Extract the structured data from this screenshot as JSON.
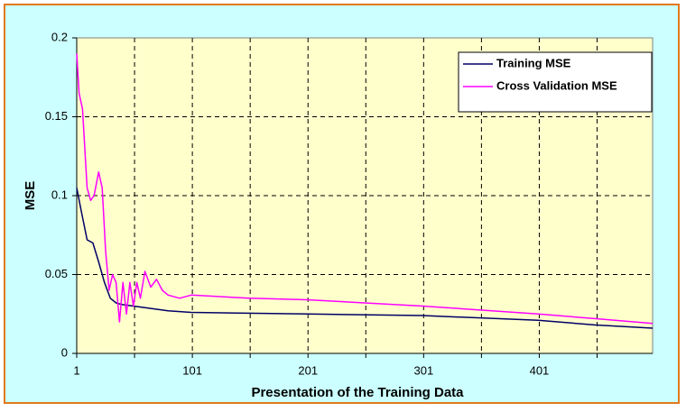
{
  "chart_data": {
    "type": "line",
    "xlabel": "Presentation of the Training Data",
    "ylabel": "MSE",
    "xlim": [
      1,
      499
    ],
    "xticks": [
      1,
      101,
      201,
      301,
      401
    ],
    "xminor_ticks": [
      51,
      151,
      251,
      351,
      451
    ],
    "ylim": [
      0,
      0.2
    ],
    "yticks": [
      0,
      0.05,
      0.1,
      0.15,
      0.2
    ],
    "grid": true,
    "legend": "upper right",
    "series": [
      {
        "name": "Training MSE",
        "color": "#000066",
        "x": [
          1,
          5,
          10,
          15,
          20,
          25,
          30,
          35,
          40,
          50,
          60,
          80,
          100,
          200,
          300,
          400,
          450,
          499
        ],
        "values": [
          0.105,
          0.09,
          0.072,
          0.07,
          0.058,
          0.045,
          0.035,
          0.032,
          0.031,
          0.03,
          0.029,
          0.027,
          0.026,
          0.025,
          0.024,
          0.021,
          0.018,
          0.016
        ]
      },
      {
        "name": "Cross Validation MSE",
        "color": "#ff00ff",
        "x": [
          1,
          3,
          6,
          10,
          13,
          16,
          20,
          23,
          26,
          29,
          32,
          35,
          38,
          41,
          44,
          47,
          50,
          53,
          56,
          60,
          65,
          70,
          75,
          80,
          90,
          100,
          150,
          200,
          300,
          400,
          450,
          499
        ],
        "values": [
          0.19,
          0.165,
          0.155,
          0.105,
          0.097,
          0.1,
          0.115,
          0.105,
          0.065,
          0.04,
          0.05,
          0.045,
          0.02,
          0.045,
          0.025,
          0.045,
          0.03,
          0.045,
          0.035,
          0.052,
          0.042,
          0.047,
          0.04,
          0.037,
          0.035,
          0.037,
          0.035,
          0.034,
          0.03,
          0.025,
          0.022,
          0.019
        ]
      }
    ]
  }
}
